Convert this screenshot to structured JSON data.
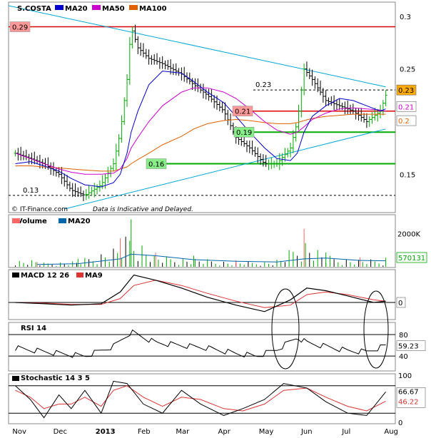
{
  "chart_data": {
    "type": "line",
    "source": "IT-Finance.com",
    "disclaimer": "Data is Indicative and Delayed.",
    "x_axis": {
      "labels": [
        "Nov",
        "Dec",
        "2013",
        "Feb",
        "Mar",
        "Apr",
        "May",
        "Jun",
        "Jul",
        "Aug"
      ]
    },
    "price_panel": {
      "title": "S.COSTA",
      "chart_type": "ohlc-bars",
      "legend": [
        {
          "name": "MA20",
          "color": "#0000cc"
        },
        {
          "name": "MA50",
          "color": "#cc00cc"
        },
        {
          "name": "MA100",
          "color": "#e06000"
        }
      ],
      "ylim": [
        0.115,
        0.31
      ],
      "y_ticks": [
        {
          "value": 0.3,
          "label": "0.3"
        },
        {
          "value": 0.25,
          "label": "0.25"
        },
        {
          "value": 0.2,
          "label": "0.2"
        },
        {
          "value": 0.15,
          "label": "0.15"
        }
      ],
      "dates": [
        "2012-10-30",
        "2012-11-10",
        "2012-11-20",
        "2012-12-01",
        "2012-12-10",
        "2012-12-20",
        "2013-01-01",
        "2013-01-10",
        "2013-01-15",
        "2013-01-20",
        "2013-01-23",
        "2013-01-28",
        "2013-02-05",
        "2013-02-15",
        "2013-03-01",
        "2013-03-10",
        "2013-03-20",
        "2013-04-01",
        "2013-04-10",
        "2013-04-20",
        "2013-05-01",
        "2013-05-10",
        "2013-05-20",
        "2013-05-25",
        "2013-05-30",
        "2013-06-05",
        "2013-06-15",
        "2013-06-25",
        "2013-07-05",
        "2013-07-15",
        "2013-07-25",
        "2013-07-29"
      ],
      "close": [
        0.17,
        0.165,
        0.16,
        0.15,
        0.135,
        0.13,
        0.14,
        0.16,
        0.19,
        0.24,
        0.29,
        0.27,
        0.26,
        0.255,
        0.245,
        0.235,
        0.225,
        0.21,
        0.185,
        0.175,
        0.16,
        0.16,
        0.175,
        0.2,
        0.25,
        0.24,
        0.22,
        0.215,
        0.21,
        0.2,
        0.21,
        0.225
      ],
      "ma20": [
        0.16,
        0.162,
        0.158,
        0.153,
        0.146,
        0.14,
        0.138,
        0.142,
        0.15,
        0.17,
        0.19,
        0.21,
        0.235,
        0.248,
        0.246,
        0.238,
        0.228,
        0.218,
        0.205,
        0.19,
        0.175,
        0.165,
        0.163,
        0.17,
        0.19,
        0.205,
        0.215,
        0.222,
        0.22,
        0.215,
        0.21,
        0.212
      ],
      "ma50": [
        0.17,
        0.165,
        0.16,
        0.155,
        0.152,
        0.15,
        0.15,
        0.151,
        0.155,
        0.165,
        0.175,
        0.185,
        0.2,
        0.215,
        0.228,
        0.232,
        0.232,
        0.228,
        0.222,
        0.212,
        0.2,
        0.192,
        0.188,
        0.19,
        0.195,
        0.202,
        0.208,
        0.212,
        0.213,
        0.212,
        0.211,
        0.21
      ],
      "ma100": [
        0.158,
        0.158,
        0.157,
        0.156,
        0.155,
        0.154,
        0.153,
        0.153,
        0.155,
        0.157,
        0.16,
        0.164,
        0.17,
        0.178,
        0.186,
        0.193,
        0.198,
        0.201,
        0.202,
        0.201,
        0.199,
        0.198,
        0.198,
        0.199,
        0.201,
        0.203,
        0.205,
        0.206,
        0.207,
        0.207,
        0.207,
        0.207
      ],
      "levels": [
        {
          "value": 0.29,
          "label": "0.29",
          "color": "#dd0000",
          "style": "solid"
        },
        {
          "value": 0.21,
          "label": "0.21",
          "color": "#dd0000",
          "style": "solid"
        },
        {
          "value": 0.19,
          "label": "0.19",
          "color": "#00aa00",
          "style": "solid"
        },
        {
          "value": 0.16,
          "label": "0.16",
          "color": "#00aa00",
          "style": "solid"
        },
        {
          "value": 0.23,
          "label": "0.23",
          "color": "#000000",
          "style": "dashed"
        },
        {
          "value": 0.13,
          "label": "0.13",
          "color": "#000000",
          "style": "dashed"
        }
      ],
      "trendlines": [
        {
          "from": [
            "2012-10-25",
            0.31
          ],
          "to": [
            "2013-07-29",
            0.233
          ],
          "color": "#00a8d8"
        },
        {
          "from": [
            "2012-12-05",
            0.117
          ],
          "to": [
            "2013-07-29",
            0.193
          ],
          "color": "#00a8d8"
        }
      ],
      "last_value_badges": [
        {
          "label": "0.23",
          "value": 0.23,
          "bg": "#ffaa00"
        },
        {
          "label": "0.21",
          "value": 0.213,
          "bg": "#ffffff",
          "fg": "#cc00cc"
        },
        {
          "label": "0.2",
          "value": 0.205,
          "bg": "#ffffff",
          "fg": "#e06000"
        }
      ]
    },
    "volume_panel": {
      "title": "Volume",
      "legend": [
        {
          "name": "MA20",
          "color": "#0066aa"
        }
      ],
      "y_ticks": [
        {
          "value": 2000000,
          "label": "2000K"
        }
      ],
      "ylim": [
        0,
        3200000
      ],
      "dates": [
        "2012-11-15",
        "2012-12-15",
        "2013-01-15",
        "2013-01-23",
        "2013-02-10",
        "2013-03-10",
        "2013-04-10",
        "2013-05-10",
        "2013-05-30",
        "2013-06-15",
        "2013-07-10",
        "2013-07-29"
      ],
      "peaks": [
        300000,
        500000,
        1800000,
        3000000,
        900000,
        700000,
        400000,
        450000,
        2400000,
        900000,
        600000,
        570131
      ],
      "ma20": [
        150000,
        200000,
        500000,
        800000,
        700000,
        450000,
        350000,
        300000,
        500000,
        550000,
        400000,
        380000
      ],
      "badge": {
        "label": "570131",
        "value": 570131
      }
    },
    "macd_panel": {
      "title": "MACD 12 26",
      "signal_name": "MA9",
      "zero_label": "0",
      "ylim": [
        -0.012,
        0.024
      ],
      "dates": [
        "2012-10-30",
        "2012-11-20",
        "2012-12-10",
        "2013-01-01",
        "2013-01-15",
        "2013-01-25",
        "2013-02-10",
        "2013-03-01",
        "2013-03-20",
        "2013-04-10",
        "2013-05-01",
        "2013-05-20",
        "2013-06-01",
        "2013-06-15",
        "2013-07-01",
        "2013-07-20",
        "2013-07-29"
      ],
      "macd": [
        0.0,
        -0.001,
        -0.002,
        -0.001,
        0.008,
        0.021,
        0.017,
        0.011,
        0.004,
        -0.002,
        -0.007,
        0.002,
        0.011,
        0.009,
        0.005,
        0.0,
        0.001
      ],
      "signal": [
        0.0,
        -0.0005,
        -0.0015,
        -0.0015,
        0.003,
        0.013,
        0.017,
        0.013,
        0.007,
        0.001,
        -0.004,
        -0.002,
        0.006,
        0.008,
        0.006,
        0.002,
        0.001
      ]
    },
    "rsi_panel": {
      "title": "RSI 14",
      "y_ticks": [
        {
          "value": 80,
          "label": "80"
        },
        {
          "value": 40,
          "label": "40"
        }
      ],
      "ylim": [
        15,
        100
      ],
      "last_value": {
        "label": "59.23",
        "value": 59.23
      },
      "dates": [
        "2012-10-30",
        "2012-11-15",
        "2012-12-01",
        "2012-12-20",
        "2013-01-10",
        "2013-01-23",
        "2013-02-10",
        "2013-03-01",
        "2013-03-20",
        "2013-04-10",
        "2013-04-25",
        "2013-05-10",
        "2013-05-25",
        "2013-06-01",
        "2013-06-15",
        "2013-07-01",
        "2013-07-15",
        "2013-07-29"
      ],
      "values": [
        55,
        50,
        45,
        40,
        58,
        85,
        65,
        60,
        55,
        45,
        40,
        52,
        75,
        65,
        58,
        50,
        48,
        59.23
      ]
    },
    "stoch_panel": {
      "title": "Stochastic 14 3 5",
      "y_ticks": [
        {
          "value": 100,
          "label": "100"
        },
        {
          "value": 0,
          "label": "0"
        }
      ],
      "levels": [
        80,
        20
      ],
      "ylim": [
        0,
        100
      ],
      "badges": [
        {
          "label": "66.67",
          "value": 66.67
        },
        {
          "label": "46.22",
          "value": 46.22,
          "color": "#dd0000"
        }
      ],
      "dates": [
        "2012-10-30",
        "2012-11-10",
        "2012-11-20",
        "2012-12-01",
        "2012-12-10",
        "2012-12-20",
        "2013-01-01",
        "2013-01-10",
        "2013-01-20",
        "2013-02-01",
        "2013-02-15",
        "2013-03-01",
        "2013-03-15",
        "2013-04-01",
        "2013-04-15",
        "2013-05-01",
        "2013-05-15",
        "2013-06-01",
        "2013-06-15",
        "2013-07-01",
        "2013-07-15",
        "2013-07-29"
      ],
      "k": [
        80,
        50,
        10,
        60,
        30,
        70,
        20,
        90,
        85,
        40,
        20,
        70,
        40,
        15,
        30,
        50,
        85,
        75,
        45,
        20,
        15,
        66.67
      ],
      "d": [
        70,
        55,
        30,
        40,
        40,
        55,
        35,
        70,
        80,
        55,
        35,
        55,
        50,
        30,
        25,
        40,
        70,
        75,
        55,
        35,
        25,
        46.22
      ]
    }
  }
}
